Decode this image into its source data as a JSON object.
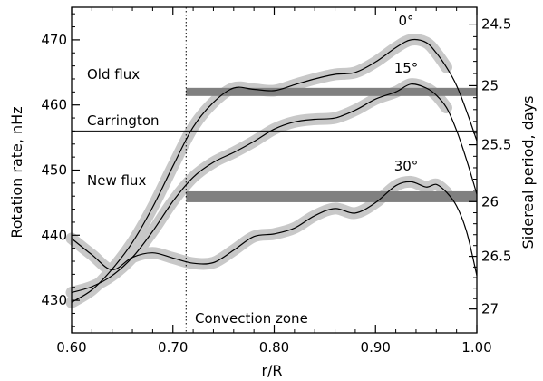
{
  "chart_data": {
    "type": "line",
    "xlabel": "r/R",
    "ylabel_left": "Rotation rate, nHz",
    "ylabel_right": "Sidereal period, days",
    "xlim": [
      0.6,
      1.0
    ],
    "ylim": [
      425,
      475
    ],
    "x_ticks": [
      "0.60",
      "0.70",
      "0.80",
      "0.90",
      "1.00"
    ],
    "y_ticks": [
      "430",
      "440",
      "450",
      "460",
      "470"
    ],
    "right_ticks": [
      "24.5",
      "25",
      "25.5",
      "26",
      "26.5",
      "27"
    ],
    "annotations": {
      "convection_zone": "Convection zone",
      "old_flux": "Old flux",
      "carrington": "Carrington",
      "new_flux": "New flux"
    },
    "reference_lines": {
      "convection_boundary": 0.713,
      "old_flux": 462.0,
      "carrington": 456.0,
      "new_flux": 445.9
    },
    "series": [
      {
        "name": "0°",
        "x": [
          0.6,
          0.62,
          0.64,
          0.66,
          0.68,
          0.7,
          0.72,
          0.74,
          0.76,
          0.78,
          0.8,
          0.82,
          0.84,
          0.86,
          0.88,
          0.9,
          0.92,
          0.935,
          0.95,
          0.96,
          0.97,
          0.98,
          0.99,
          1.0
        ],
        "y": [
          429.7,
          431.6,
          434.8,
          438.9,
          444.3,
          450.6,
          456.6,
          460.4,
          462.6,
          462.4,
          462.2,
          463.1,
          464.0,
          464.7,
          465.0,
          466.6,
          468.8,
          470.0,
          469.6,
          468.0,
          465.8,
          463.0,
          459.0,
          454.5
        ],
        "band": 0.9
      },
      {
        "name": "15°",
        "x": [
          0.6,
          0.62,
          0.64,
          0.66,
          0.68,
          0.7,
          0.72,
          0.74,
          0.76,
          0.78,
          0.8,
          0.82,
          0.84,
          0.86,
          0.88,
          0.9,
          0.92,
          0.935,
          0.95,
          0.96,
          0.97,
          0.98,
          0.99,
          1.0
        ],
        "y": [
          431.2,
          432.1,
          433.8,
          436.6,
          440.6,
          445.2,
          448.9,
          451.2,
          452.7,
          454.4,
          456.3,
          457.4,
          457.8,
          458.0,
          459.2,
          460.9,
          462.0,
          463.2,
          462.6,
          461.5,
          459.6,
          456.1,
          451.5,
          446.3
        ],
        "band": 0.9
      },
      {
        "name": "30°",
        "x": [
          0.6,
          0.62,
          0.64,
          0.66,
          0.68,
          0.7,
          0.72,
          0.74,
          0.76,
          0.78,
          0.8,
          0.82,
          0.84,
          0.86,
          0.88,
          0.9,
          0.92,
          0.935,
          0.95,
          0.96,
          0.97,
          0.98,
          0.99,
          1.0
        ],
        "y": [
          439.5,
          437.0,
          434.7,
          436.6,
          437.3,
          436.5,
          435.7,
          435.8,
          437.7,
          439.8,
          440.2,
          441.1,
          443.0,
          444.1,
          443.4,
          445.0,
          447.6,
          448.2,
          447.4,
          447.8,
          446.6,
          444.5,
          440.5,
          433.8
        ],
        "band": 0.9
      }
    ],
    "colors": {
      "line": "#000000",
      "error_band": "#c8c8c8",
      "flux_band": "#808080"
    },
    "grid": false,
    "legend": "none"
  }
}
